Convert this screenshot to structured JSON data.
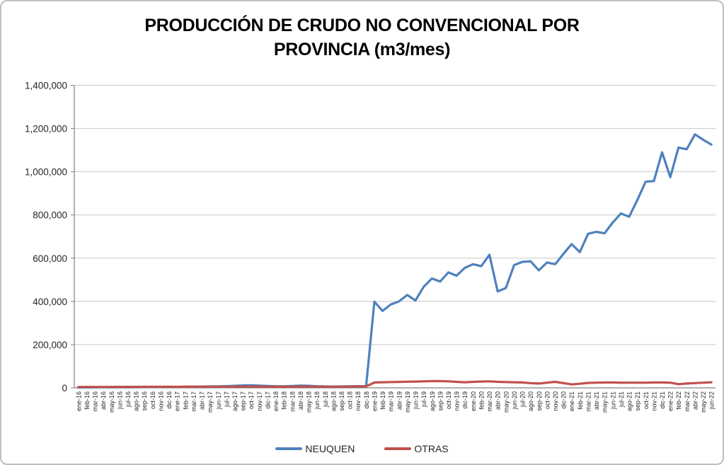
{
  "window": {
    "background": "#ffffff",
    "border_color": "#bfbfbf"
  },
  "chart_data": {
    "type": "line",
    "title": "PRODUCCIÓN DE CRUDO NO CONVENCIONAL POR PROVINCIA (m3/mes)",
    "title_lines": [
      "PRODUCCIÓN DE CRUDO NO CONVENCIONAL POR",
      "PROVINCIA (m3/mes)"
    ],
    "xlabel": "",
    "ylabel": "",
    "ylim": [
      0,
      1400000
    ],
    "y_tick_step": 200000,
    "y_tick_labels": [
      "0",
      "200,000",
      "400,000",
      "600,000",
      "800,000",
      "1,000,000",
      "1,200,000",
      "1,400,000"
    ],
    "grid": true,
    "legend_position": "bottom",
    "colors": {
      "gridline": "#c8c8c8",
      "axis": "#808080",
      "tick_text": "#262626",
      "title_text": "#000000"
    },
    "categories": [
      "ene-16",
      "feb-16",
      "mar-16",
      "abr-16",
      "may-16",
      "jun-16",
      "jul-16",
      "ago-16",
      "sep-16",
      "oct-16",
      "nov-16",
      "dic-16",
      "ene-17",
      "feb-17",
      "mar-17",
      "abr-17",
      "may-17",
      "jun-17",
      "jul-17",
      "ago-17",
      "sep-17",
      "oct-17",
      "nov-17",
      "dic-17",
      "ene-18",
      "feb-18",
      "mar-18",
      "abr-18",
      "may-18",
      "jun-18",
      "jul-18",
      "ago-18",
      "sep-18",
      "oct-18",
      "nov-18",
      "dic-18",
      "ene-19",
      "feb-19",
      "mar-19",
      "abr-19",
      "may-19",
      "jun-19",
      "jul-19",
      "ago-19",
      "sep-19",
      "oct-19",
      "nov-19",
      "dic-19",
      "ene-20",
      "feb-20",
      "mar-20",
      "abr-20",
      "may-20",
      "jun-20",
      "jul-20",
      "ago-20",
      "sep-20",
      "oct-20",
      "nov-20",
      "dic-20",
      "ene-21",
      "feb-21",
      "mar-21",
      "abr-21",
      "may-21",
      "jun-21",
      "jul-21",
      "ago-21",
      "sep-21",
      "oct-21",
      "nov-21",
      "dic-21",
      "ene-22",
      "feb-22",
      "mar-22",
      "abr-22",
      "may-22",
      "jun-22"
    ],
    "series": [
      {
        "name": "NEUQUEN",
        "color": "#4F81BD",
        "values": [
          2000,
          2100,
          2300,
          2500,
          2700,
          2900,
          3000,
          3200,
          3500,
          3800,
          4000,
          4300,
          4600,
          4900,
          5300,
          5800,
          6400,
          7000,
          8000,
          9500,
          11000,
          12000,
          10500,
          8500,
          7500,
          7000,
          9000,
          10000,
          9500,
          7500,
          6500,
          6000,
          6500,
          7000,
          7500,
          8000,
          399000,
          356000,
          386000,
          400000,
          430000,
          404000,
          468000,
          506000,
          492000,
          534000,
          519000,
          555000,
          572000,
          563000,
          616000,
          446000,
          462000,
          568000,
          583000,
          586000,
          544000,
          580000,
          572000,
          620000,
          665000,
          628000,
          713000,
          722000,
          715000,
          765000,
          807000,
          792000,
          870000,
          954000,
          957000,
          1090000,
          975000,
          1112000,
          1104000,
          1173000,
          1148000,
          1126000
        ]
      },
      {
        "name": "OTRAS",
        "color": "#C0504D",
        "values": [
          4000,
          4100,
          4200,
          4300,
          4400,
          4500,
          4600,
          4700,
          4800,
          4900,
          5000,
          5000,
          5000,
          5100,
          5200,
          5300,
          5400,
          5500,
          5600,
          5800,
          6000,
          6000,
          5800,
          5600,
          5400,
          5300,
          5500,
          5800,
          6000,
          5800,
          5500,
          5400,
          5600,
          6000,
          6500,
          7000,
          25000,
          26000,
          27000,
          27500,
          28500,
          29000,
          30000,
          31000,
          31000,
          30000,
          28000,
          26000,
          28000,
          29000,
          30000,
          28000,
          27000,
          26000,
          25000,
          22000,
          20000,
          24000,
          28000,
          22000,
          16000,
          19000,
          23000,
          24000,
          25000,
          25000,
          24000,
          24000,
          24000,
          24000,
          25000,
          25000,
          24000,
          17000,
          20000,
          22000,
          24000,
          26000
        ]
      }
    ]
  }
}
